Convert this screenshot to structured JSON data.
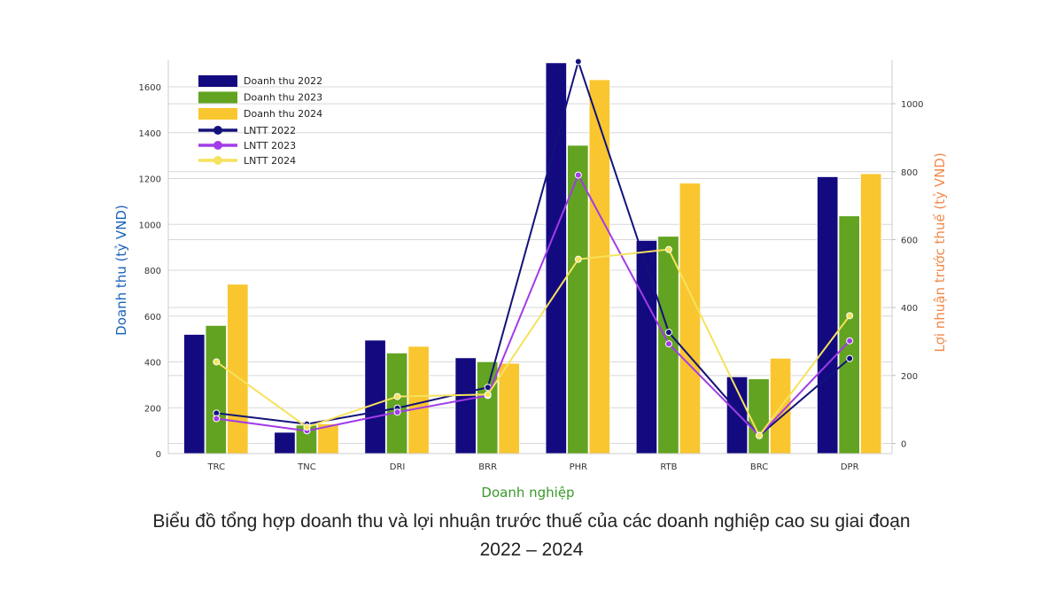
{
  "chart_data": {
    "type": "bar",
    "categories": [
      "TRC",
      "TNC",
      "DRI",
      "BRR",
      "PHR",
      "RTB",
      "BRC",
      "DPR"
    ],
    "xlabel": "Doanh nghiệp",
    "ylabel": "Doanh thu (tỷ VND)",
    "y2label": "Lợi nhuận trước thuế (tỷ VND)",
    "ylim": [
      0,
      1716
    ],
    "y2lim": [
      -30,
      1128
    ],
    "yticks": [
      0,
      200,
      400,
      600,
      800,
      1000,
      1200,
      1400,
      1600
    ],
    "y2ticks": [
      0,
      200,
      400,
      600,
      800,
      1000
    ],
    "grid": true,
    "legend_position": "top-left",
    "series": [
      {
        "name": "Doanh thu 2022",
        "kind": "bar",
        "axis": "left",
        "color": "#130a80",
        "values": [
          520,
          93,
          495,
          418,
          1705,
          930,
          335,
          1208
        ]
      },
      {
        "name": "Doanh thu 2023",
        "kind": "bar",
        "axis": "left",
        "color": "#62a321",
        "values": [
          559,
          124,
          439,
          401,
          1345,
          948,
          326,
          1037
        ]
      },
      {
        "name": "Doanh thu 2024",
        "kind": "bar",
        "axis": "left",
        "color": "#f9c62f",
        "values": [
          739,
          130,
          468,
          394,
          1631,
          1180,
          416,
          1221
        ]
      },
      {
        "name": "LNTT 2022",
        "kind": "line",
        "axis": "right",
        "color": "#13127a",
        "values": [
          89,
          57,
          104,
          165,
          1124,
          327,
          23,
          250
        ]
      },
      {
        "name": "LNTT 2023",
        "kind": "line",
        "axis": "right",
        "color": "#a23ce8",
        "values": [
          73,
          37,
          92,
          141,
          790,
          293,
          23,
          302
        ]
      },
      {
        "name": "LNTT 2024",
        "kind": "line",
        "axis": "right",
        "color": "#f5e25e",
        "values": [
          240,
          48,
          138,
          144,
          542,
          571,
          23,
          376
        ]
      }
    ],
    "label_colors": {
      "ylabel": "#1a62b8",
      "y2label": "#f08a4b",
      "xlabel": "#3a9a2a"
    }
  },
  "caption": {
    "line1": "Biểu đồ tổng hợp doanh thu và lợi nhuận trước thuế của các doanh nghiệp cao su giai đoạn",
    "line2": "2022 – 2024"
  }
}
